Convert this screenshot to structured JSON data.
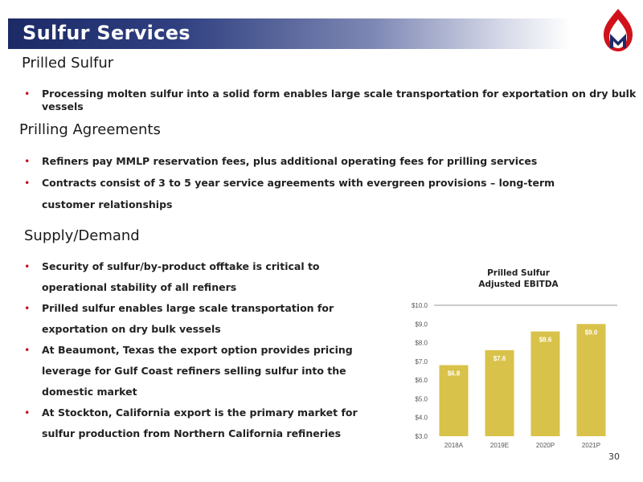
{
  "header": {
    "title": "Sulfur Services"
  },
  "sections": {
    "prilled_sulfur": {
      "title": "Prilled Sulfur",
      "bullets": [
        "Processing molten sulfur into a solid form enables large scale transportation for exportation on dry bulk vessels"
      ]
    },
    "prilling_agreements": {
      "title": "Prilling Agreements",
      "bullets": [
        "Refiners pay MMLP reservation fees, plus additional operating fees for prilling services",
        "Contracts consist of 3 to 5 year service agreements with evergreen provisions – long-term customer relationships"
      ]
    },
    "supply_demand": {
      "title": "Supply/Demand",
      "bullets": [
        "Security of sulfur/by-product offtake is critical to operational stability of all refiners",
        "Prilled sulfur enables large scale transportation for exportation on dry bulk vessels",
        "At Beaumont, Texas the export option provides pricing leverage for Gulf Coast refiners selling sulfur into the domestic market",
        "At Stockton, California export is the primary market for sulfur production from Northern California refineries"
      ]
    }
  },
  "bullet_glyph": "•",
  "colors": {
    "header_dark": "#1c2a66",
    "bar": "#d9c24a",
    "bullet": "#c0141c",
    "logo_red": "#d0121b",
    "logo_navy": "#1e2a6a"
  },
  "logo": {
    "icon": "flame-m-logo"
  },
  "chart_data": {
    "type": "bar",
    "title_lines": [
      "Prilled Sulfur",
      "Adjusted EBITDA"
    ],
    "categories": [
      "2018A",
      "2019E",
      "2020P",
      "2021P"
    ],
    "values": [
      6.8,
      7.6,
      8.6,
      9.0
    ],
    "value_labels": [
      "$6.8",
      "$7.6",
      "$8.6",
      "$9.0"
    ],
    "y_ticks": [
      "$3.0",
      "$4.0",
      "$5.0",
      "$6.0",
      "$7.0",
      "$8.0",
      "$9.0",
      "$10.0"
    ],
    "ylim": [
      3,
      10
    ],
    "grid": false
  },
  "page_number": "30"
}
